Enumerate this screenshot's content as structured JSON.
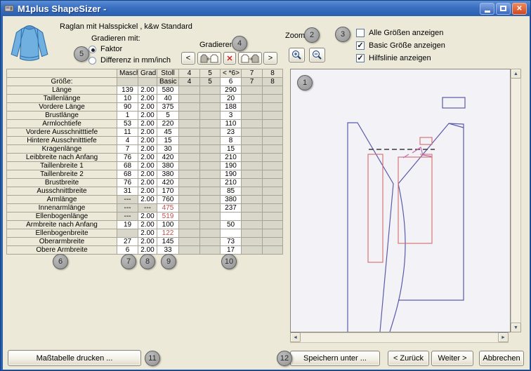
{
  "window": {
    "title": "M1plus ShapeSizer -"
  },
  "colors": {
    "titlebar": "#2c5fae",
    "error_value": "#c84b4b",
    "pattern_blue": "#5b5baa",
    "pattern_red": "#d66a6a",
    "pattern_pink": "#c868b0",
    "dialog_bg": "#ece9d8"
  },
  "icons": {
    "minimize": "",
    "maximize": "",
    "close": "✕",
    "delete": "✕",
    "prev": "<",
    "next": ">",
    "scroll_up": "▲",
    "scroll_down": "▼",
    "scroll_left": "◄",
    "scroll_right": "►"
  },
  "header": {
    "description": "Raglan mit Halsspickel , k&w Standard",
    "grading_label": "Gradieren mit:",
    "grading_selected": "Faktor",
    "radios": [
      {
        "label": "Faktor"
      },
      {
        "label": "Differenz in mm/inch"
      }
    ],
    "gradieren_label": "Gradieren:",
    "zoom_label": "Zoom:",
    "checkboxes": [
      {
        "label": "Alle Größen anzeigen",
        "checked": false
      },
      {
        "label": "Basic Größe anzeigen",
        "checked": true
      },
      {
        "label": "Hilfslinie anzeigen",
        "checked": true
      }
    ]
  },
  "table": {
    "columns": [
      "",
      "Masch",
      "Grad.",
      "Stoll",
      "4",
      "5",
      "< *6>",
      "7",
      "8"
    ],
    "size_row": {
      "label": "Größe:",
      "basic": "Basic",
      "sizes": [
        "4",
        "5",
        "6",
        "7",
        "8"
      ]
    },
    "selected_size": "6",
    "rows": [
      {
        "label": "Länge",
        "masch": "139",
        "grad": "2.00",
        "stoll": "580",
        "s6": "290"
      },
      {
        "label": "Taillenlänge",
        "masch": "10",
        "grad": "2.00",
        "stoll": "40",
        "s6": "20"
      },
      {
        "label": "Vordere Länge",
        "masch": "90",
        "grad": "2.00",
        "stoll": "375",
        "s6": "188"
      },
      {
        "label": "Brustlänge",
        "masch": "1",
        "grad": "2.00",
        "stoll": "5",
        "s6": "3"
      },
      {
        "label": "Armlochtiefe",
        "masch": "53",
        "grad": "2.00",
        "stoll": "220",
        "s6": "110"
      },
      {
        "label": "Vordere Ausschnitttiefe",
        "masch": "11",
        "grad": "2.00",
        "stoll": "45",
        "s6": "23"
      },
      {
        "label": "Hintere Ausschnitttiefe",
        "masch": "4",
        "grad": "2.00",
        "stoll": "15",
        "s6": "8"
      },
      {
        "label": "Kragenlänge",
        "masch": "7",
        "grad": "2.00",
        "stoll": "30",
        "s6": "15"
      },
      {
        "label": "Leibbreite nach Anfang",
        "masch": "76",
        "grad": "2.00",
        "stoll": "420",
        "s6": "210"
      },
      {
        "label": "Taillenbreite 1",
        "masch": "68",
        "grad": "2.00",
        "stoll": "380",
        "s6": "190"
      },
      {
        "label": "Taillenbreite 2",
        "masch": "68",
        "grad": "2.00",
        "stoll": "380",
        "s6": "190"
      },
      {
        "label": "Brustbreite",
        "masch": "76",
        "grad": "2.00",
        "stoll": "420",
        "s6": "210"
      },
      {
        "label": "Ausschnittbreite",
        "masch": "31",
        "grad": "2.00",
        "stoll": "170",
        "s6": "85"
      },
      {
        "label": "Armlänge",
        "masch": "---",
        "grad": "2.00",
        "stoll": "760",
        "s6": "380"
      },
      {
        "label": "Innenarmlänge",
        "masch": "---",
        "grad": "---",
        "stoll": "475",
        "s6": "237",
        "stoll_red": true
      },
      {
        "label": "Ellenbogenlänge",
        "masch": "---",
        "grad": "2.00",
        "stoll": "519",
        "s6": "",
        "stoll_red": true
      },
      {
        "label": "Armbreite nach Anfang",
        "masch": "19",
        "grad": "2.00",
        "stoll": "100",
        "s6": "50"
      },
      {
        "label": "Ellenbogenbreite",
        "masch": "",
        "grad": "2.00",
        "stoll": "122",
        "s6": "",
        "stoll_red": true
      },
      {
        "label": "Oberarmbreite",
        "masch": "27",
        "grad": "2.00",
        "stoll": "145",
        "s6": "73"
      },
      {
        "label": "Obere Armbreite",
        "masch": "6",
        "grad": "2.00",
        "stoll": "33",
        "s6": "17"
      }
    ]
  },
  "footer": {
    "print": "Maßtabelle drucken ...",
    "save": "Speichern unter ...",
    "back": "< Zurück",
    "next": "Weiter >",
    "cancel": "Abbrechen"
  },
  "annotations": {
    "a1": "1",
    "a2": "2",
    "a3": "3",
    "a4": "4",
    "a5": "5",
    "a6": "6",
    "a7": "7",
    "a8": "8",
    "a9": "9",
    "a10": "10",
    "a11": "11",
    "a12": "12"
  }
}
